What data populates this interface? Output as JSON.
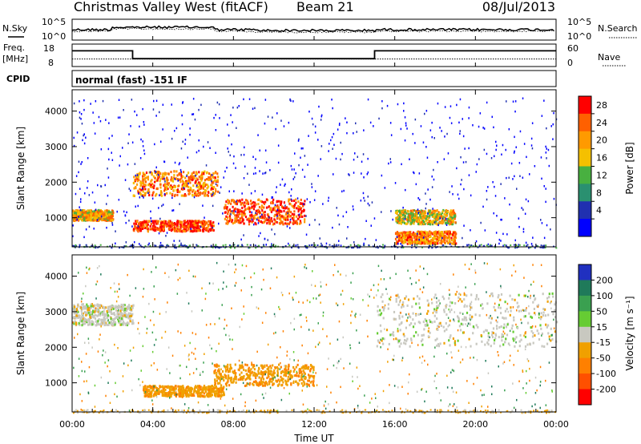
{
  "header": {
    "station": "Christmas Valley West (fitACF)",
    "beam": "Beam 21",
    "date": "08/Jul/2013"
  },
  "top_panels": {
    "nsky_label": "N.Sky",
    "nsearch_label": "N.Search",
    "n_axis": [
      "10^5",
      "10^0"
    ],
    "freq_label": "Freq.",
    "freq_unit": "[MHz]",
    "freq_ticks": [
      "18",
      "8"
    ],
    "nave_label": "Nave",
    "nave_ticks": [
      "60",
      "0"
    ],
    "cpid_label": "CPID",
    "cpid_text": "normal (fast) -151 IF"
  },
  "power_panel": {
    "ylabel": "Slant Range [km]",
    "colorbar_label": "Power [dB]",
    "colorbar_ticks": [
      "28",
      "24",
      "20",
      "16",
      "12",
      "8",
      "4"
    ],
    "colors": [
      "#ff0000",
      "#ff6000",
      "#ff9a00",
      "#f5c000",
      "#48b040",
      "#2a9070",
      "#2030b0",
      "#0000ff"
    ]
  },
  "velocity_panel": {
    "ylabel": "Slant Range [km]",
    "colorbar_label": "Velocity [m s⁻¹]",
    "colorbar_ticks": [
      "200",
      "100",
      "50",
      "15",
      "-15",
      "-50",
      "-100",
      "-200"
    ],
    "colors": [
      "#2030c0",
      "#1f7a5a",
      "#3aa050",
      "#66cc33",
      "#c8c8c0",
      "#f0a000",
      "#ff8000",
      "#ff5000",
      "#ff0000"
    ]
  },
  "y_ticks": [
    "4000",
    "3000",
    "2000",
    "1000"
  ],
  "x_ticks": [
    "00:00",
    "04:00",
    "08:00",
    "12:00",
    "16:00",
    "20:00",
    "00:00"
  ],
  "xlabel": "Time UT",
  "chart_data": {
    "type": "heatmap",
    "title": "Christmas Valley West (fitACF) Beam 21 08/Jul/2013",
    "xlabel": "Time UT",
    "ylabel": "Slant Range [km]",
    "xlim_hours": [
      0,
      24
    ],
    "ylim_km": [
      180,
      4600
    ],
    "frequency_MHz": {
      "segments": [
        [
          0,
          3,
          15
        ],
        [
          3,
          15,
          11.5
        ],
        [
          15,
          24,
          15
        ]
      ],
      "ylim": [
        8,
        18
      ]
    },
    "nave": {
      "value": 20,
      "ylim": [
        0,
        60
      ]
    },
    "power_regions_dB": [
      {
        "t": [
          3.0,
          7.2
        ],
        "r": [
          1600,
          2300
        ],
        "level": 22
      },
      {
        "t": [
          3.0,
          7.0
        ],
        "r": [
          600,
          900
        ],
        "level": 26
      },
      {
        "t": [
          7.5,
          11.5
        ],
        "r": [
          800,
          1500
        ],
        "level": 25
      },
      {
        "t": [
          0.0,
          2.0
        ],
        "r": [
          900,
          1200
        ],
        "level": 20
      },
      {
        "t": [
          16.0,
          19.0
        ],
        "r": [
          800,
          1200
        ],
        "level": 18
      },
      {
        "t": [
          16.0,
          19.0
        ],
        "r": [
          250,
          600
        ],
        "level": 22
      }
    ],
    "velocity_regions_ms": [
      {
        "t": [
          7.0,
          12.0
        ],
        "r": [
          900,
          1500
        ],
        "level": -40
      },
      {
        "t": [
          3.5,
          7.5
        ],
        "r": [
          600,
          900
        ],
        "level": -40
      },
      {
        "t": [
          0.0,
          3.0
        ],
        "r": [
          2600,
          3200
        ],
        "level": 0
      },
      {
        "t": [
          15.0,
          24.0
        ],
        "r": [
          2000,
          3500
        ],
        "level": 0
      }
    ]
  }
}
